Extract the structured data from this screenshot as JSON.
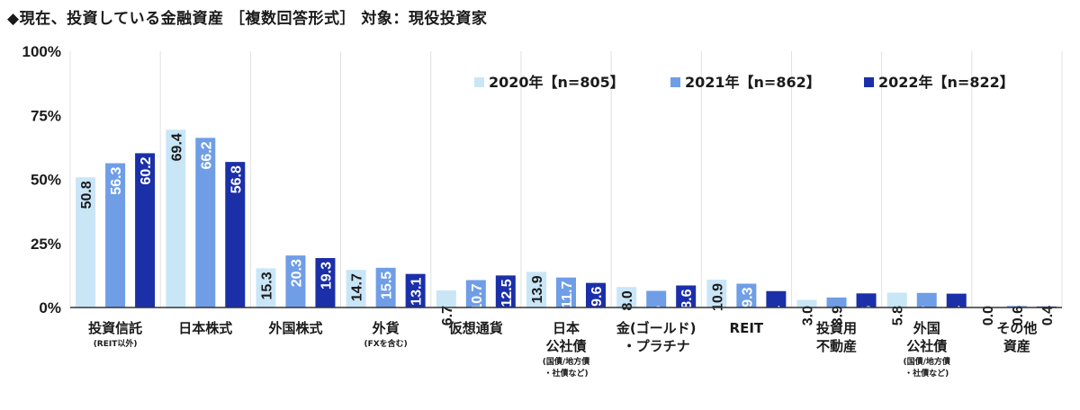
{
  "title": "◆現在、投資している金融資産 ［複数回答形式］ 対象：現役投資家",
  "chart_data": {
    "type": "bar",
    "ylim": [
      0,
      100
    ],
    "yticks": [
      "0%",
      "25%",
      "50%",
      "75%",
      "100%"
    ],
    "categories": [
      {
        "main": [
          "投資信託"
        ],
        "sub": [
          "(REIT以外)"
        ]
      },
      {
        "main": [
          "日本株式"
        ],
        "sub": []
      },
      {
        "main": [
          "外国株式"
        ],
        "sub": []
      },
      {
        "main": [
          "外貨"
        ],
        "sub": [
          "(FXを含む)"
        ]
      },
      {
        "main": [
          "仮想通貨"
        ],
        "sub": []
      },
      {
        "main": [
          "日本",
          "公社債"
        ],
        "sub": [
          "(国債/地方債",
          "・社債など)"
        ]
      },
      {
        "main": [
          "金(ゴールド)",
          "・プラチナ"
        ],
        "sub": []
      },
      {
        "main": [
          "REIT"
        ],
        "sub": []
      },
      {
        "main": [
          "投資用",
          "不動産"
        ],
        "sub": []
      },
      {
        "main": [
          "外国",
          "公社債"
        ],
        "sub": [
          "(国債/地方債",
          "・社債など)"
        ]
      },
      {
        "main": [
          "その他",
          "資産"
        ],
        "sub": []
      }
    ],
    "series": [
      {
        "name": "2020年【n=805】",
        "color": "#c9e6f7",
        "label_color": "#1a1a1a",
        "values": [
          50.8,
          69.4,
          15.3,
          14.7,
          6.7,
          13.9,
          8.0,
          10.9,
          3.0,
          5.8,
          0.0
        ]
      },
      {
        "name": "2021年【n=862】",
        "color": "#6f9ee6",
        "label_color": "#ffffff",
        "values": [
          56.3,
          66.2,
          20.3,
          15.5,
          10.7,
          11.7,
          6.5,
          9.3,
          3.9,
          5.7,
          0.6
        ]
      },
      {
        "name": "2022年【n=822】",
        "color": "#1b2fa8",
        "label_color": "#ffffff",
        "values": [
          60.2,
          56.8,
          19.3,
          13.1,
          12.5,
          9.6,
          8.6,
          6.4,
          5.5,
          5.4,
          0.4
        ]
      }
    ],
    "legend": "top-right",
    "grid": false
  }
}
